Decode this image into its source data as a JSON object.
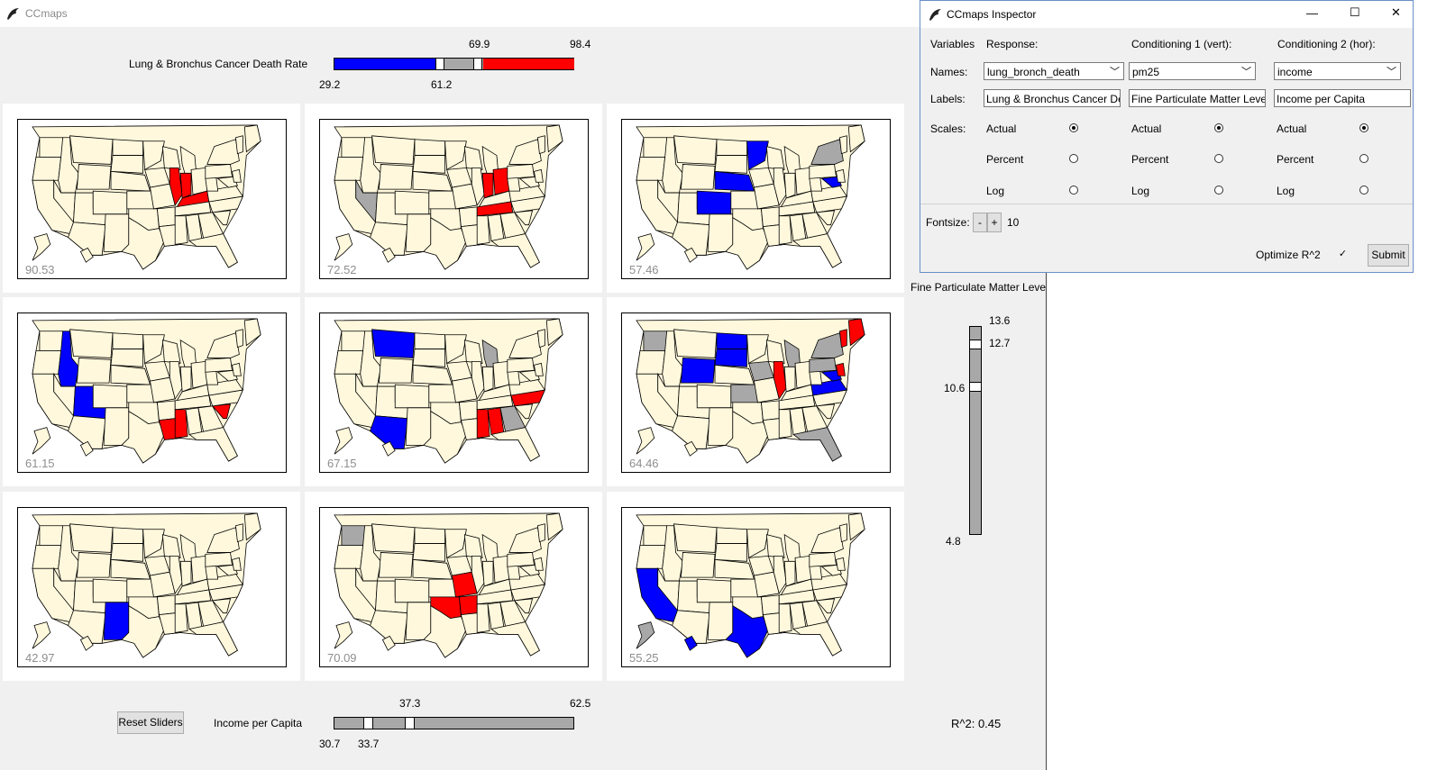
{
  "main": {
    "title": "CCmaps",
    "response_label": "Lung & Bronchus Cancer Death Rate",
    "response_slider": {
      "top_labels": [
        "69.9",
        "98.4"
      ],
      "bottom_labels": [
        "29.2",
        "61.2"
      ],
      "colors": {
        "low": "#0000ff",
        "mid": "#a8a8a8",
        "high": "#ff0000"
      }
    },
    "maps": [
      {
        "value": "90.53",
        "highlights": [
          {
            "state": "IL",
            "color": "#ff0000"
          },
          {
            "state": "IN",
            "color": "#ff0000"
          },
          {
            "state": "KY",
            "color": "#ff0000"
          }
        ]
      },
      {
        "value": "72.52",
        "highlights": [
          {
            "state": "NV",
            "color": "#a8a8a8"
          },
          {
            "state": "IN",
            "color": "#ff0000"
          },
          {
            "state": "OH",
            "color": "#ff0000"
          },
          {
            "state": "TN",
            "color": "#ff0000"
          }
        ]
      },
      {
        "value": "57.46",
        "highlights": [
          {
            "state": "MN",
            "color": "#0000ff"
          },
          {
            "state": "NE",
            "color": "#0000ff"
          },
          {
            "state": "CO",
            "color": "#0000ff"
          },
          {
            "state": "NY",
            "color": "#a8a8a8"
          },
          {
            "state": "MD",
            "color": "#0000ff"
          }
        ]
      },
      {
        "value": "61.15",
        "highlights": [
          {
            "state": "ID",
            "color": "#0000ff"
          },
          {
            "state": "UT",
            "color": "#0000ff"
          },
          {
            "state": "LA",
            "color": "#ff0000"
          },
          {
            "state": "MS",
            "color": "#ff0000"
          },
          {
            "state": "SC",
            "color": "#ff0000"
          }
        ]
      },
      {
        "value": "67.15",
        "highlights": [
          {
            "state": "MT",
            "color": "#0000ff"
          },
          {
            "state": "AZ",
            "color": "#0000ff"
          },
          {
            "state": "MI",
            "color": "#a8a8a8"
          },
          {
            "state": "MS",
            "color": "#ff0000"
          },
          {
            "state": "AL",
            "color": "#ff0000"
          },
          {
            "state": "GA",
            "color": "#a8a8a8"
          },
          {
            "state": "NC",
            "color": "#ff0000"
          }
        ]
      },
      {
        "value": "64.46",
        "highlights": [
          {
            "state": "WA",
            "color": "#a8a8a8"
          },
          {
            "state": "ND",
            "color": "#0000ff"
          },
          {
            "state": "SD",
            "color": "#0000ff"
          },
          {
            "state": "WY",
            "color": "#0000ff"
          },
          {
            "state": "IA",
            "color": "#a8a8a8"
          },
          {
            "state": "IL",
            "color": "#ff0000"
          },
          {
            "state": "KS",
            "color": "#a8a8a8"
          },
          {
            "state": "MI",
            "color": "#a8a8a8"
          },
          {
            "state": "PA",
            "color": "#a8a8a8"
          },
          {
            "state": "NY",
            "color": "#a8a8a8"
          },
          {
            "state": "VA",
            "color": "#0000ff"
          },
          {
            "state": "MD",
            "color": "#0000ff"
          },
          {
            "state": "NJ",
            "color": "#ff0000"
          },
          {
            "state": "ME",
            "color": "#ff0000"
          },
          {
            "state": "VT",
            "color": "#ff0000"
          },
          {
            "state": "FL",
            "color": "#a8a8a8"
          }
        ]
      },
      {
        "value": "42.97",
        "highlights": [
          {
            "state": "NM",
            "color": "#0000ff"
          }
        ]
      },
      {
        "value": "70.09",
        "highlights": [
          {
            "state": "WA",
            "color": "#a8a8a8"
          },
          {
            "state": "OK",
            "color": "#ff0000"
          },
          {
            "state": "AR",
            "color": "#ff0000"
          },
          {
            "state": "MO",
            "color": "#ff0000"
          }
        ]
      },
      {
        "value": "55.25",
        "highlights": [
          {
            "state": "CA",
            "color": "#0000ff"
          },
          {
            "state": "TX",
            "color": "#0000ff"
          },
          {
            "state": "AK",
            "color": "#a8a8a8"
          },
          {
            "state": "HI",
            "color": "#0000ff"
          }
        ]
      }
    ],
    "vert_slider": {
      "label": "Fine Particulate Matter Level",
      "labels": [
        "13.6",
        "12.7",
        "10.6",
        "4.8"
      ]
    },
    "reset_button": "Reset Sliders",
    "hor_slider": {
      "label": "Income per Capita",
      "top_labels": [
        "37.3",
        "62.5"
      ],
      "bottom_labels": [
        "30.7",
        "33.7"
      ]
    },
    "r2": "R^2: 0.45"
  },
  "inspector": {
    "title": "CCmaps Inspector",
    "col_variables": "Variables",
    "col_response": "Response:",
    "col_cond1": "Conditioning 1 (vert):",
    "col_cond2": "Conditioning 2 (hor):",
    "row_names": "Names:",
    "row_labels": "Labels:",
    "row_scales": "Scales:",
    "names": [
      "lung_bronch_death",
      "pm25",
      "income"
    ],
    "labels": [
      "Lung & Bronchus Cancer De",
      "Fine Particulate Matter Level",
      "Income per Capita"
    ],
    "scale_options": [
      "Actual",
      "Percent",
      "Log"
    ],
    "scale_selected": "Actual",
    "fontsize_label": "Fontsize:",
    "fontsize_minus": "-",
    "fontsize_plus": "+",
    "fontsize_value": "10",
    "optimize_label": "Optimize R^2",
    "optimize_checked": "✓",
    "submit": "Submit",
    "window_buttons": [
      "—",
      "☐",
      "✕"
    ]
  }
}
